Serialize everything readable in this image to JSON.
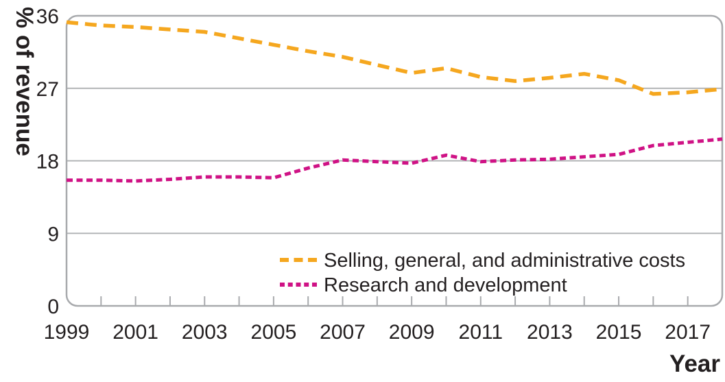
{
  "chart_data": {
    "type": "line",
    "title": "",
    "ylabel": "% of revenue",
    "xlabel": "Year",
    "ylim": [
      0,
      36
    ],
    "yticks": [
      0,
      9,
      18,
      27,
      36
    ],
    "x_range": [
      1999,
      2018
    ],
    "xtick_label_years": [
      1999,
      2001,
      2003,
      2005,
      2007,
      2009,
      2011,
      2013,
      2015,
      2017
    ],
    "minor_xticks_every_year": true,
    "grid": "horizontal",
    "legend_position": "inside-bottom-center-right",
    "frame_style": "rounded-gray-border",
    "colors": {
      "frame": "#a8aaad",
      "grid": "#b3b5b7",
      "text": "#231f20"
    },
    "x": [
      1999,
      2000,
      2001,
      2002,
      2003,
      2004,
      2005,
      2006,
      2007,
      2008,
      2009,
      2010,
      2011,
      2012,
      2013,
      2014,
      2015,
      2016,
      2017,
      2018
    ],
    "series": [
      {
        "name": "Selling, general, and administrative costs",
        "color": "#F5A71F",
        "dash_style": "long-dash",
        "values": [
          35.2,
          34.8,
          34.6,
          34.3,
          34.0,
          33.2,
          32.4,
          31.6,
          30.9,
          29.9,
          28.9,
          29.5,
          28.4,
          27.9,
          28.3,
          28.8,
          28.0,
          26.3,
          26.5,
          26.9
        ]
      },
      {
        "name": "Research and development",
        "color": "#CF1285",
        "dash_style": "short-dash",
        "values": [
          15.6,
          15.6,
          15.5,
          15.7,
          16.0,
          16.0,
          15.9,
          17.1,
          18.1,
          17.9,
          17.7,
          18.7,
          17.9,
          18.1,
          18.2,
          18.5,
          18.8,
          19.9,
          20.3,
          20.7
        ]
      }
    ]
  }
}
